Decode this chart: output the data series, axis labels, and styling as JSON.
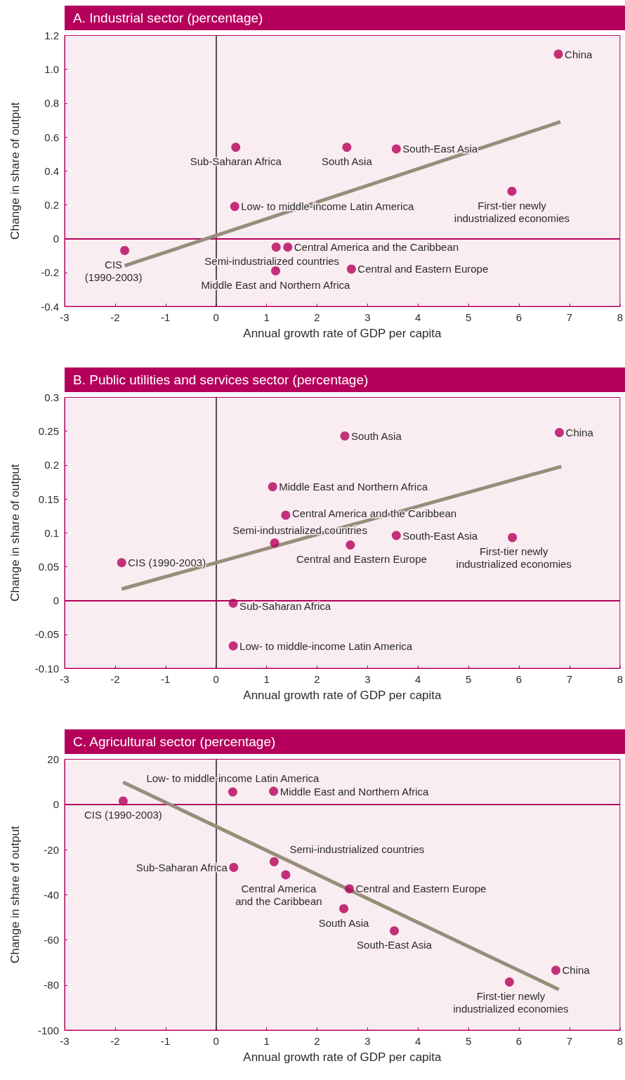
{
  "chart_data": [
    {
      "type": "scatter",
      "title": "A.  Industrial sector (percentage)",
      "xlabel": "Annual growth rate of GDP per capita",
      "ylabel": "Change in share of output",
      "xlim": [
        -3,
        8
      ],
      "xticks": [
        -3,
        -2,
        -1,
        0,
        1,
        2,
        3,
        4,
        5,
        6,
        7,
        8
      ],
      "ylim": [
        -0.4,
        1.2
      ],
      "yticks": [
        -0.4,
        -0.2,
        0,
        0.2,
        0.4,
        0.6,
        0.8,
        {
          "value": 1,
          "label": "1.0"
        },
        1.2
      ],
      "series": [
        {
          "marker": "circle",
          "color": "#b5005b",
          "x": [
            6.78,
            0.39,
            2.59,
            3.57,
            5.86,
            0.37,
            -1.81,
            1.19,
            1.42,
            1.18,
            2.68
          ],
          "values": [
            1.09,
            0.54,
            0.54,
            0.53,
            0.28,
            0.19,
            -0.07,
            -0.05,
            -0.05,
            -0.19,
            -0.18
          ]
        },
        {
          "type": "line",
          "marker": "none",
          "color": "#968d7b",
          "x": [
            -1.81,
            6.82
          ],
          "values": [
            -0.16,
            0.69
          ]
        }
      ],
      "ref_lines": [
        {
          "axis": "x",
          "value": 0,
          "color": "#1a1a1a"
        },
        {
          "axis": "y",
          "value": 0,
          "color": "#b5005b"
        }
      ],
      "annotations": [
        {
          "text": "China",
          "x": 6.78,
          "y": 1.09
        },
        {
          "text": "Sub-Saharan Africa",
          "x": 0.39,
          "y": 0.54
        },
        {
          "text": "South Asia",
          "x": 2.59,
          "y": 0.54
        },
        {
          "text": "South-East Asia",
          "x": 3.57,
          "y": 0.53
        },
        {
          "text": "First-tier newly\nindustrialized economies",
          "x": 5.86,
          "y": 0.28
        },
        {
          "text": "Low- to middle-income Latin America",
          "x": 0.37,
          "y": 0.19
        },
        {
          "text": "CIS\n(1990-2003)",
          "x": -1.81,
          "y": -0.07
        },
        {
          "text": "Semi-industrialized countries",
          "x": 1.19,
          "y": -0.05
        },
        {
          "text": "Central America and the Caribbean",
          "x": 1.42,
          "y": -0.05
        },
        {
          "text": "Middle East and Northern Africa",
          "x": 1.18,
          "y": -0.19
        },
        {
          "text": "Central and Eastern Europe",
          "x": 2.68,
          "y": -0.18
        }
      ]
    },
    {
      "type": "scatter",
      "title": "B.  Public utilities and services sector (percentage)",
      "xlabel": "Annual growth rate of GDP per capita",
      "ylabel": "Change in share of output",
      "xlim": [
        -3,
        8
      ],
      "xticks": [
        -3,
        -2,
        -1,
        0,
        1,
        2,
        3,
        4,
        5,
        6,
        7,
        8
      ],
      "ylim": [
        -0.1,
        0.3
      ],
      "yticks": [
        {
          "value": -0.1,
          "label": "-0.10"
        },
        -0.05,
        0,
        0.05,
        0.1,
        0.15,
        0.2,
        0.25,
        0.3
      ],
      "series": [
        {
          "marker": "circle",
          "color": "#b5005b",
          "x": [
            6.8,
            2.55,
            1.12,
            1.38,
            1.16,
            2.66,
            3.57,
            5.87,
            -1.87,
            0.34,
            0.34
          ],
          "values": [
            0.248,
            0.243,
            0.168,
            0.126,
            0.085,
            0.082,
            0.096,
            0.093,
            0.056,
            -0.004,
            -0.067
          ]
        },
        {
          "type": "line",
          "marker": "none",
          "color": "#968d7b",
          "x": [
            -1.87,
            6.84
          ],
          "values": [
            0.017,
            0.198
          ]
        }
      ],
      "ref_lines": [
        {
          "axis": "x",
          "value": 0,
          "color": "#1a1a1a"
        },
        {
          "axis": "y",
          "value": 0,
          "color": "#b5005b"
        }
      ],
      "annotations": [
        {
          "text": "China",
          "x": 6.8,
          "y": 0.248
        },
        {
          "text": "South Asia",
          "x": 2.55,
          "y": 0.243
        },
        {
          "text": "Middle East and Northern Africa",
          "x": 1.12,
          "y": 0.168
        },
        {
          "text": "Central America and the Caribbean",
          "x": 1.38,
          "y": 0.126
        },
        {
          "text": "Semi-industrialized countries",
          "x": 1.16,
          "y": 0.085
        },
        {
          "text": "Central and Eastern Europe",
          "x": 2.66,
          "y": 0.082
        },
        {
          "text": "South-East Asia",
          "x": 3.57,
          "y": 0.096
        },
        {
          "text": "First-tier newly\nindustrialized economies",
          "x": 5.87,
          "y": 0.093
        },
        {
          "text": "CIS (1990-2003)",
          "x": -1.87,
          "y": 0.056
        },
        {
          "text": "Sub-Saharan Africa",
          "x": 0.34,
          "y": -0.004
        },
        {
          "text": "Low- to middle-income Latin America",
          "x": 0.34,
          "y": -0.067
        }
      ]
    },
    {
      "type": "scatter",
      "title": "C.  Agricultural sector (percentage)",
      "xlabel": "Annual growth rate of GDP per capita",
      "ylabel": "Change in share of output",
      "xlim": [
        -3,
        8
      ],
      "xticks": [
        -3,
        -2,
        -1,
        0,
        1,
        2,
        3,
        4,
        5,
        6,
        7,
        8
      ],
      "ylim": [
        -100,
        20
      ],
      "yticks": [
        -100,
        -80,
        -60,
        -40,
        -20,
        0,
        20
      ],
      "series": [
        {
          "marker": "circle",
          "color": "#b5005b",
          "x": [
            -1.84,
            0.33,
            1.14,
            0.35,
            1.15,
            1.38,
            2.64,
            2.53,
            3.53,
            5.81,
            6.73
          ],
          "values": [
            1.5,
            5.5,
            5.8,
            -27.9,
            -25.4,
            -31.2,
            -37.4,
            -46.2,
            -56,
            -78.7,
            -73.5
          ]
        },
        {
          "type": "line",
          "marker": "none",
          "color": "#968d7b",
          "x": [
            -1.84,
            6.79
          ],
          "values": [
            9.8,
            -82
          ]
        }
      ],
      "ref_lines": [
        {
          "axis": "x",
          "value": 0,
          "color": "#1a1a1a"
        },
        {
          "axis": "y",
          "value": 0,
          "color": "#b5005b"
        }
      ],
      "annotations": [
        {
          "text": "CIS (1990-2003)",
          "x": -1.84,
          "y": 1.5
        },
        {
          "text": "Low- to middle-income Latin America",
          "x": 0.33,
          "y": 5.5
        },
        {
          "text": "Middle East and Northern Africa",
          "x": 1.14,
          "y": 5.8
        },
        {
          "text": "Sub-Saharan Africa",
          "x": 0.35,
          "y": -27.9
        },
        {
          "text": "Semi-industrialized countries",
          "x": 1.15,
          "y": -25.4
        },
        {
          "text": "Central America\nand the Caribbean",
          "x": 1.38,
          "y": -31.2
        },
        {
          "text": "Central and Eastern Europe",
          "x": 2.64,
          "y": -37.4
        },
        {
          "text": "South Asia",
          "x": 2.53,
          "y": -46.2
        },
        {
          "text": "South-East Asia",
          "x": 3.53,
          "y": -56
        },
        {
          "text": "First-tier newly\nindustrialized economies",
          "x": 5.81,
          "y": -78.7
        },
        {
          "text": "China",
          "x": 6.73,
          "y": -73.5
        }
      ]
    }
  ]
}
